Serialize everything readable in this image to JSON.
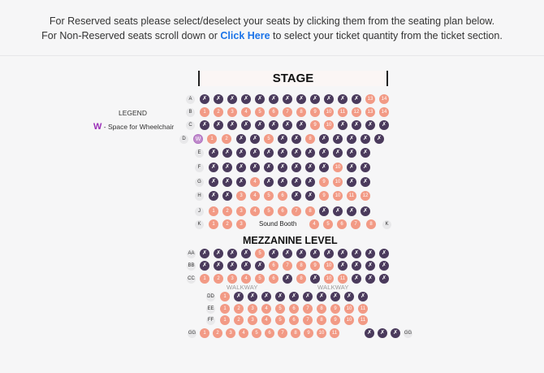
{
  "header": {
    "line1": "For Reserved seats please select/deselect your seats by clicking them from the seating plan below.",
    "line2_pre": "For Non-Reserved seats scroll down or ",
    "line2_link": "Click Here",
    "line2_post": " to select your ticket quantity from the ticket section."
  },
  "stage_label": "STAGE",
  "legend": {
    "title": "LEGEND",
    "w_symbol": "W",
    "w_text": " - Space for Wheelchair"
  },
  "mezzanine_label": "MEZZANINE LEVEL",
  "sound_booth_label": "Sound Booth",
  "walkway_label": "WALKWAY",
  "taken_glyph": "✗",
  "colors": {
    "available": "#f29a85",
    "taken": "#4a3a5c",
    "wheelchair": "#c08ccc",
    "link": "#1a73e8"
  },
  "rows": [
    {
      "label": "A",
      "seats": [
        {
          "n": "",
          "t": "x"
        },
        {
          "n": "",
          "t": "x"
        },
        {
          "n": "",
          "t": "x"
        },
        {
          "n": "",
          "t": "x"
        },
        {
          "n": "",
          "t": "x"
        },
        {
          "n": "",
          "t": "x"
        },
        {
          "n": "",
          "t": "x"
        },
        {
          "n": "",
          "t": "x"
        },
        {
          "n": "",
          "t": "x"
        },
        {
          "n": "",
          "t": "x"
        },
        {
          "n": "",
          "t": "x"
        },
        {
          "n": "",
          "t": "x"
        },
        {
          "n": "13",
          "t": "a"
        },
        {
          "n": "14",
          "t": "a"
        }
      ]
    },
    {
      "label": "B",
      "seats": [
        {
          "n": "1",
          "t": "a"
        },
        {
          "n": "2",
          "t": "a"
        },
        {
          "n": "3",
          "t": "a"
        },
        {
          "n": "4",
          "t": "a"
        },
        {
          "n": "5",
          "t": "a"
        },
        {
          "n": "6",
          "t": "a"
        },
        {
          "n": "7",
          "t": "a"
        },
        {
          "n": "8",
          "t": "a"
        },
        {
          "n": "9",
          "t": "a"
        },
        {
          "n": "10",
          "t": "a"
        },
        {
          "n": "11",
          "t": "a"
        },
        {
          "n": "12",
          "t": "a"
        },
        {
          "n": "13",
          "t": "a"
        },
        {
          "n": "14",
          "t": "a"
        }
      ]
    },
    {
      "label": "C",
      "seats": [
        {
          "n": "",
          "t": "x"
        },
        {
          "n": "",
          "t": "x"
        },
        {
          "n": "",
          "t": "x"
        },
        {
          "n": "",
          "t": "x"
        },
        {
          "n": "",
          "t": "x"
        },
        {
          "n": "",
          "t": "x"
        },
        {
          "n": "",
          "t": "x"
        },
        {
          "n": "",
          "t": "x"
        },
        {
          "n": "9",
          "t": "a"
        },
        {
          "n": "10",
          "t": "a"
        },
        {
          "n": "",
          "t": "x"
        },
        {
          "n": "",
          "t": "x"
        },
        {
          "n": "",
          "t": "x"
        },
        {
          "n": "",
          "t": "x"
        }
      ]
    },
    {
      "label": "D",
      "seats": [
        {
          "n": "W",
          "t": "w"
        },
        {
          "n": "1",
          "t": "a"
        },
        {
          "n": "2",
          "t": "a"
        },
        {
          "n": "",
          "t": "x"
        },
        {
          "n": "",
          "t": "x"
        },
        {
          "n": "5",
          "t": "a"
        },
        {
          "n": "",
          "t": "x"
        },
        {
          "n": "",
          "t": "x"
        },
        {
          "n": "8",
          "t": "a"
        },
        {
          "n": "",
          "t": "x"
        },
        {
          "n": "",
          "t": "x"
        },
        {
          "n": "",
          "t": "x"
        },
        {
          "n": "",
          "t": "x"
        },
        {
          "n": "",
          "t": "x"
        }
      ]
    },
    {
      "label": "E",
      "seats": [
        {
          "n": "",
          "t": "x"
        },
        {
          "n": "",
          "t": "x"
        },
        {
          "n": "",
          "t": "x"
        },
        {
          "n": "",
          "t": "x"
        },
        {
          "n": "",
          "t": "x"
        },
        {
          "n": "",
          "t": "x"
        },
        {
          "n": "",
          "t": "x"
        },
        {
          "n": "",
          "t": "x"
        },
        {
          "n": "",
          "t": "x"
        },
        {
          "n": "",
          "t": "x"
        },
        {
          "n": "",
          "t": "x"
        },
        {
          "n": "",
          "t": "x"
        }
      ]
    },
    {
      "label": "F",
      "seats": [
        {
          "n": "",
          "t": "x"
        },
        {
          "n": "",
          "t": "x"
        },
        {
          "n": "",
          "t": "x"
        },
        {
          "n": "",
          "t": "x"
        },
        {
          "n": "",
          "t": "x"
        },
        {
          "n": "",
          "t": "x"
        },
        {
          "n": "",
          "t": "x"
        },
        {
          "n": "",
          "t": "x"
        },
        {
          "n": "",
          "t": "x"
        },
        {
          "n": "10",
          "t": "a"
        },
        {
          "n": "",
          "t": "x"
        },
        {
          "n": "",
          "t": "x"
        }
      ]
    },
    {
      "label": "G",
      "seats": [
        {
          "n": "",
          "t": "x"
        },
        {
          "n": "",
          "t": "x"
        },
        {
          "n": "",
          "t": "x"
        },
        {
          "n": "4",
          "t": "a"
        },
        {
          "n": "",
          "t": "x"
        },
        {
          "n": "",
          "t": "x"
        },
        {
          "n": "",
          "t": "x"
        },
        {
          "n": "",
          "t": "x"
        },
        {
          "n": "9",
          "t": "a"
        },
        {
          "n": "10",
          "t": "a"
        },
        {
          "n": "",
          "t": "x"
        },
        {
          "n": "",
          "t": "x"
        }
      ]
    },
    {
      "label": "H",
      "seats": [
        {
          "n": "",
          "t": "x"
        },
        {
          "n": "",
          "t": "x"
        },
        {
          "n": "3",
          "t": "a"
        },
        {
          "n": "4",
          "t": "a"
        },
        {
          "n": "5",
          "t": "a"
        },
        {
          "n": "6",
          "t": "a"
        },
        {
          "n": "",
          "t": "x"
        },
        {
          "n": "",
          "t": "x"
        },
        {
          "n": "9",
          "t": "a"
        },
        {
          "n": "10",
          "t": "a"
        },
        {
          "n": "11",
          "t": "a"
        },
        {
          "n": "12",
          "t": "a"
        }
      ]
    },
    {
      "label": "J",
      "seats": [
        {
          "n": "1",
          "t": "a"
        },
        {
          "n": "2",
          "t": "a"
        },
        {
          "n": "3",
          "t": "a"
        },
        {
          "n": "4",
          "t": "a"
        },
        {
          "n": "5",
          "t": "a"
        },
        {
          "n": "6",
          "t": "a"
        },
        {
          "n": "7",
          "t": "a"
        },
        {
          "n": "8",
          "t": "a"
        },
        {
          "n": "",
          "t": "x"
        },
        {
          "n": "",
          "t": "x"
        },
        {
          "n": "",
          "t": "x"
        },
        {
          "n": "",
          "t": "x"
        }
      ]
    },
    {
      "label": "K",
      "seats": [
        {
          "n": "1",
          "t": "a"
        },
        {
          "n": "2",
          "t": "a"
        },
        {
          "n": "3",
          "t": "a"
        },
        {
          "n": "4",
          "t": "a"
        },
        {
          "n": "5",
          "t": "a"
        },
        {
          "n": "6",
          "t": "a"
        },
        {
          "n": "7",
          "t": "a"
        },
        {
          "n": "8",
          "t": "a"
        }
      ]
    },
    {
      "label": "AA",
      "seats": [
        {
          "n": "",
          "t": "x"
        },
        {
          "n": "",
          "t": "x"
        },
        {
          "n": "",
          "t": "x"
        },
        {
          "n": "",
          "t": "x"
        },
        {
          "n": "5",
          "t": "a"
        },
        {
          "n": "",
          "t": "x"
        },
        {
          "n": "",
          "t": "x"
        },
        {
          "n": "",
          "t": "x"
        },
        {
          "n": "",
          "t": "x"
        },
        {
          "n": "",
          "t": "x"
        },
        {
          "n": "",
          "t": "x"
        },
        {
          "n": "",
          "t": "x"
        },
        {
          "n": "",
          "t": "x"
        },
        {
          "n": "",
          "t": "x"
        }
      ]
    },
    {
      "label": "BB",
      "seats": [
        {
          "n": "",
          "t": "x"
        },
        {
          "n": "",
          "t": "x"
        },
        {
          "n": "",
          "t": "x"
        },
        {
          "n": "",
          "t": "x"
        },
        {
          "n": "",
          "t": "x"
        },
        {
          "n": "6",
          "t": "a"
        },
        {
          "n": "7",
          "t": "a"
        },
        {
          "n": "8",
          "t": "a"
        },
        {
          "n": "9",
          "t": "a"
        },
        {
          "n": "10",
          "t": "a"
        },
        {
          "n": "",
          "t": "x"
        },
        {
          "n": "",
          "t": "x"
        },
        {
          "n": "",
          "t": "x"
        },
        {
          "n": "",
          "t": "x"
        }
      ]
    },
    {
      "label": "CC",
      "seats": [
        {
          "n": "1",
          "t": "a"
        },
        {
          "n": "2",
          "t": "a"
        },
        {
          "n": "3",
          "t": "a"
        },
        {
          "n": "4",
          "t": "a"
        },
        {
          "n": "5",
          "t": "a"
        },
        {
          "n": "6",
          "t": "a"
        },
        {
          "n": "",
          "t": "x"
        },
        {
          "n": "8",
          "t": "a"
        },
        {
          "n": "",
          "t": "x"
        },
        {
          "n": "10",
          "t": "a"
        },
        {
          "n": "11",
          "t": "a"
        },
        {
          "n": "",
          "t": "x"
        },
        {
          "n": "",
          "t": "x"
        },
        {
          "n": "",
          "t": "x"
        }
      ]
    },
    {
      "label": "DD",
      "seats": [
        {
          "n": "1",
          "t": "a"
        },
        {
          "n": "",
          "t": "x"
        },
        {
          "n": "",
          "t": "x"
        },
        {
          "n": "",
          "t": "x"
        },
        {
          "n": "",
          "t": "x"
        },
        {
          "n": "",
          "t": "x"
        },
        {
          "n": "",
          "t": "x"
        },
        {
          "n": "",
          "t": "x"
        },
        {
          "n": "",
          "t": "x"
        },
        {
          "n": "",
          "t": "x"
        },
        {
          "n": "",
          "t": "x"
        }
      ]
    },
    {
      "label": "EE",
      "seats": [
        {
          "n": "1",
          "t": "a"
        },
        {
          "n": "2",
          "t": "a"
        },
        {
          "n": "3",
          "t": "a"
        },
        {
          "n": "4",
          "t": "a"
        },
        {
          "n": "5",
          "t": "a"
        },
        {
          "n": "6",
          "t": "a"
        },
        {
          "n": "7",
          "t": "a"
        },
        {
          "n": "8",
          "t": "a"
        },
        {
          "n": "9",
          "t": "a"
        },
        {
          "n": "10",
          "t": "a"
        },
        {
          "n": "11",
          "t": "a"
        }
      ]
    },
    {
      "label": "FF",
      "seats": [
        {
          "n": "1",
          "t": "a"
        },
        {
          "n": "2",
          "t": "a"
        },
        {
          "n": "3",
          "t": "a"
        },
        {
          "n": "4",
          "t": "a"
        },
        {
          "n": "5",
          "t": "a"
        },
        {
          "n": "6",
          "t": "a"
        },
        {
          "n": "7",
          "t": "a"
        },
        {
          "n": "8",
          "t": "a"
        },
        {
          "n": "9",
          "t": "a"
        },
        {
          "n": "10",
          "t": "a"
        },
        {
          "n": "11",
          "t": "a"
        }
      ]
    },
    {
      "label": "GG",
      "seats": [
        {
          "n": "1",
          "t": "a"
        },
        {
          "n": "2",
          "t": "a"
        },
        {
          "n": "3",
          "t": "a"
        },
        {
          "n": "4",
          "t": "a"
        },
        {
          "n": "5",
          "t": "a"
        },
        {
          "n": "6",
          "t": "a"
        },
        {
          "n": "7",
          "t": "a"
        },
        {
          "n": "8",
          "t": "a"
        },
        {
          "n": "9",
          "t": "a"
        },
        {
          "n": "10",
          "t": "a"
        },
        {
          "n": "11",
          "t": "a"
        },
        {
          "n": "",
          "t": "x"
        },
        {
          "n": "",
          "t": "x"
        },
        {
          "n": "",
          "t": "x"
        },
        {
          "n": "",
          "t": "x"
        }
      ]
    }
  ]
}
